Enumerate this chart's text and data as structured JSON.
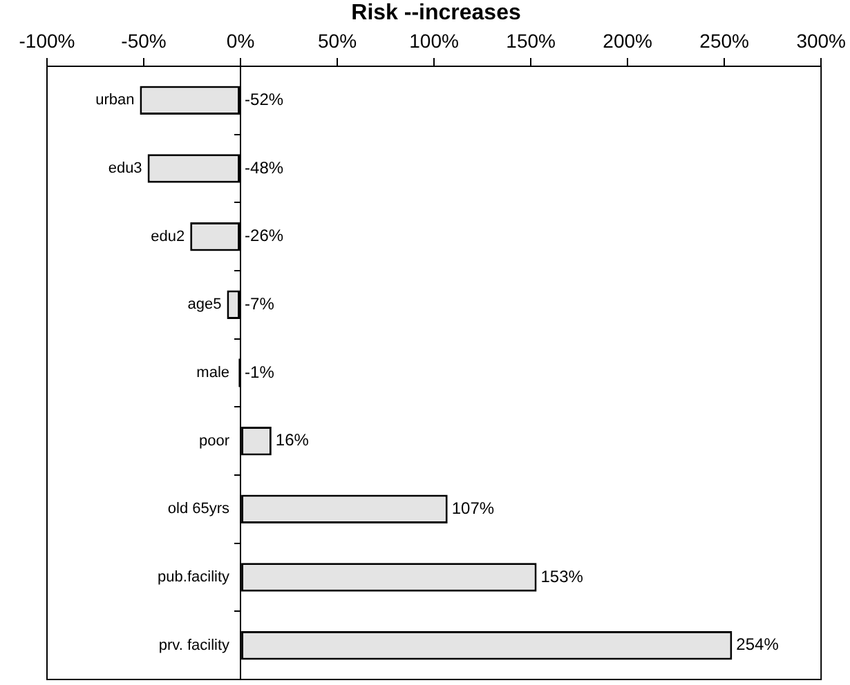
{
  "chart_data": {
    "type": "bar",
    "orientation": "horizontal",
    "title": "Risk --increases",
    "categories": [
      "urban",
      "edu3",
      "edu2",
      "age5",
      "male",
      "poor",
      "old 65yrs",
      "pub.facility",
      "prv. facility"
    ],
    "values": [
      -52,
      -48,
      -26,
      -7,
      -1,
      16,
      107,
      153,
      254
    ],
    "value_labels": [
      "-52%",
      "-48%",
      "-26%",
      "-7%",
      "-1%",
      "16%",
      "107%",
      "153%",
      "254%"
    ],
    "colors": [
      "#e4e4e4",
      "#e4e4e4",
      "#e4e4e4",
      "#e4e4e4",
      "#000000",
      "#e4e4e4",
      "#e4e4e4",
      "#e4e4e4",
      "#e4e4e4"
    ],
    "xlim": [
      -100,
      300
    ],
    "xticks": [
      {
        "value": -100,
        "label": "-100%"
      },
      {
        "value": -50,
        "label": "-50%"
      },
      {
        "value": 0,
        "label": "0%"
      },
      {
        "value": 50,
        "label": "50%"
      },
      {
        "value": 100,
        "label": "100%"
      },
      {
        "value": 150,
        "label": "150%"
      },
      {
        "value": 200,
        "label": "200%"
      },
      {
        "value": 250,
        "label": "250%"
      },
      {
        "value": 300,
        "label": "300%"
      }
    ],
    "grid": false,
    "legend": false
  }
}
